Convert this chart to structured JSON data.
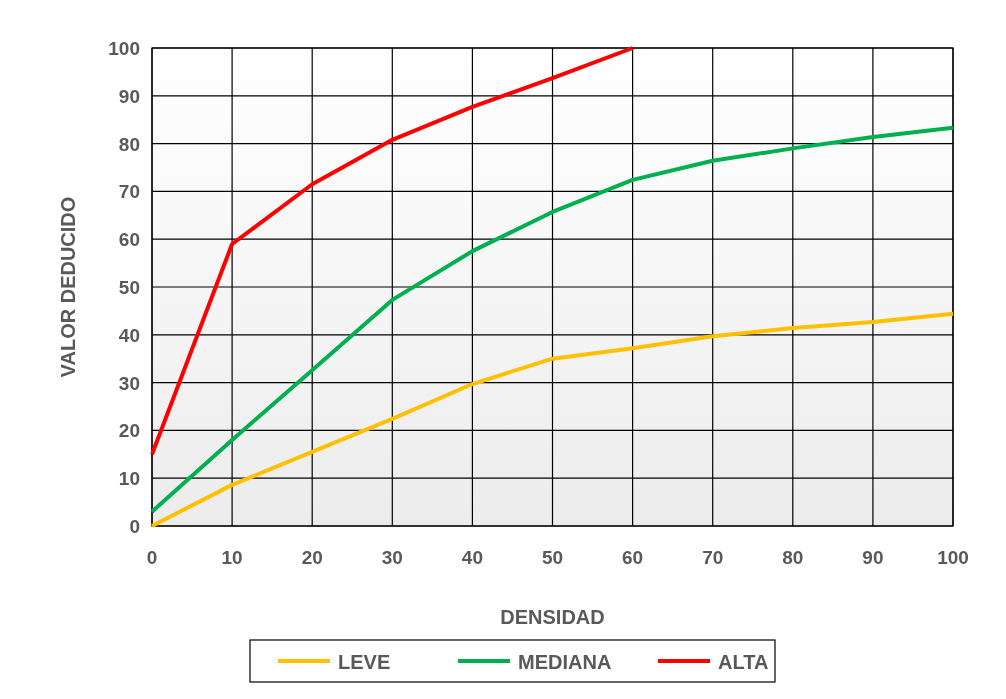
{
  "chart_data": {
    "type": "line",
    "xlabel": "DENSIDAD",
    "ylabel": "VALOR DEDUCIDO",
    "x": [
      0,
      10,
      20,
      30,
      40,
      50,
      60,
      70,
      80,
      90,
      100
    ],
    "series": [
      {
        "name": "LEVE",
        "color": "#ffc000",
        "values": [
          0,
          8.6,
          15.5,
          22.4,
          29.7,
          35,
          37.2,
          39.7,
          41.4,
          42.7,
          44.4
        ]
      },
      {
        "name": "MEDIANA",
        "color": "#00b050",
        "values": [
          3,
          18,
          32.6,
          47.3,
          57.5,
          65.7,
          72.4,
          76.4,
          79,
          81.4,
          83.3
        ]
      },
      {
        "name": "ALTA",
        "color": "#ff0000",
        "values": [
          15,
          59,
          71.5,
          80.8,
          87.7,
          93.7,
          100,
          null,
          null,
          null,
          null
        ]
      }
    ],
    "xlim": [
      0,
      100
    ],
    "xticks": [
      0,
      10,
      20,
      30,
      40,
      50,
      60,
      70,
      80,
      90,
      100
    ],
    "ylim": [
      0,
      100
    ],
    "yticks": [
      0,
      10,
      20,
      30,
      40,
      50,
      60,
      70,
      80,
      90,
      100
    ],
    "grid": true,
    "legend": "bottom",
    "marker": "none",
    "line_style": "solid"
  }
}
